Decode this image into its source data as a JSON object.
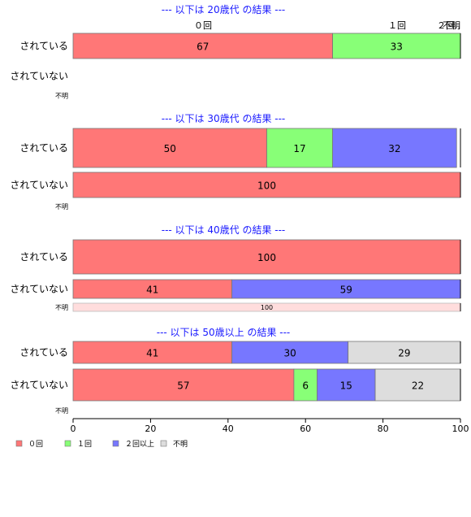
{
  "chart_data": {
    "type": "bar",
    "orientation": "horizontal-stacked-100",
    "colors": {
      "0回": "#ff7777",
      "１回": "#88ff77",
      "２回以上": "#7777ff",
      "不明": "#dddddd"
    },
    "legend": {
      "placement": "bottom-left",
      "entries": [
        "０回",
        "１回",
        "２回以上",
        "不明"
      ]
    },
    "xaxis": {
      "ticks": [
        "0",
        "20",
        "40",
        "60",
        "80",
        "100"
      ],
      "range": [
        0,
        100
      ]
    },
    "panels": [
      {
        "title": "--- 以下は 20歳代 の結果 ---",
        "top_labels": [
          "０回",
          "１回",
          "２回..",
          "不明"
        ],
        "rows": [
          {
            "label": "されている",
            "segments": [
              67,
              33,
              0,
              0
            ]
          },
          {
            "label": "されていない",
            "segments": [
              0,
              0,
              0,
              0
            ]
          },
          {
            "label": "不明",
            "segments": [
              0,
              0,
              0,
              0
            ]
          }
        ]
      },
      {
        "title": "--- 以下は 30歳代 の結果 ---",
        "rows": [
          {
            "label": "されている",
            "segments": [
              50,
              17,
              32,
              0
            ]
          },
          {
            "label": "されていない",
            "segments": [
              100,
              0,
              0,
              0
            ]
          },
          {
            "label": "不明",
            "segments": [
              0,
              0,
              0,
              0
            ]
          }
        ]
      },
      {
        "title": "--- 以下は 40歳代 の結果 ---",
        "rows": [
          {
            "label": "されている",
            "segments": [
              100,
              0,
              0,
              0
            ]
          },
          {
            "label": "されていない",
            "segments": [
              41,
              0,
              59,
              0
            ]
          },
          {
            "label": "不明",
            "segments": [
              100,
              0,
              0,
              0
            ],
            "faded": true
          }
        ]
      },
      {
        "title": "--- 以下は 50歳以上 の結果 ---",
        "rows": [
          {
            "label": "されている",
            "segments": [
              41,
              0,
              30,
              29
            ]
          },
          {
            "label": "されていない",
            "segments": [
              57,
              6,
              15,
              22
            ]
          },
          {
            "label": "不明",
            "segments": [
              0,
              0,
              0,
              0
            ]
          }
        ]
      }
    ]
  }
}
